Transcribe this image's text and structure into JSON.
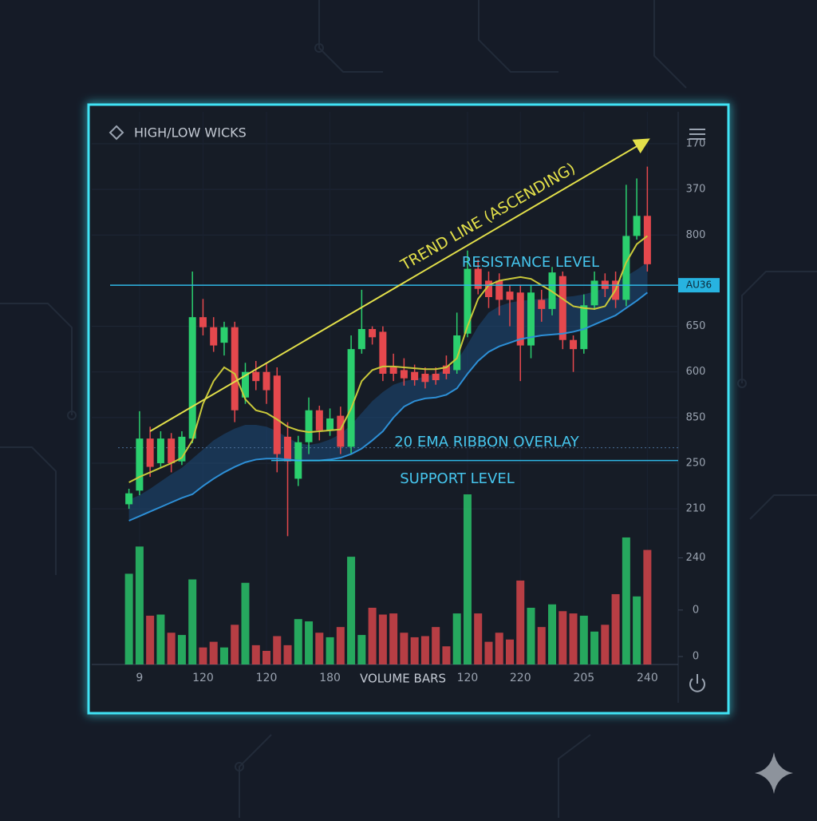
{
  "chart_data": {
    "type": "candlestick",
    "title": "HIGH/LOW WICKS",
    "up_color": "#2bcf6e",
    "down_color": "#e5484d",
    "open": [
      505,
      520,
      577,
      550,
      577,
      552,
      577,
      710,
      699,
      682,
      699,
      622,
      650,
      650,
      646,
      579,
      533,
      573,
      608,
      586,
      602,
      568,
      675,
      697,
      694,
      655,
      652,
      650,
      648,
      648,
      657,
      652,
      692,
      763,
      750,
      750,
      738,
      737,
      679,
      729,
      719,
      755,
      685,
      675,
      723,
      750,
      750,
      729,
      799,
      821
    ],
    "high": [
      522,
      607,
      590,
      585,
      583,
      585,
      760,
      730,
      710,
      705,
      705,
      660,
      662,
      660,
      655,
      595,
      580,
      622,
      613,
      610,
      612,
      690,
      740,
      700,
      700,
      670,
      665,
      658,
      655,
      655,
      668,
      715,
      783,
      773,
      760,
      758,
      745,
      745,
      745,
      740,
      765,
      760,
      690,
      735,
      760,
      758,
      760,
      855,
      862,
      875
    ],
    "low": [
      500,
      515,
      535,
      545,
      540,
      548,
      572,
      690,
      672,
      668,
      595,
      615,
      630,
      615,
      540,
      470,
      525,
      560,
      575,
      580,
      560,
      560,
      670,
      680,
      640,
      640,
      635,
      635,
      632,
      636,
      642,
      648,
      688,
      735,
      720,
      712,
      700,
      640,
      665,
      705,
      712,
      675,
      650,
      670,
      718,
      732,
      720,
      722,
      795,
      760
    ],
    "close": [
      517,
      577,
      546,
      577,
      550,
      579,
      710,
      699,
      679,
      699,
      608,
      650,
      640,
      630,
      560,
      552,
      573,
      608,
      586,
      599,
      568,
      675,
      697,
      688,
      648,
      648,
      643,
      641,
      639,
      641,
      648,
      690,
      763,
      741,
      732,
      729,
      729,
      679,
      737,
      719,
      759,
      685,
      675,
      723,
      750,
      741,
      729,
      799,
      821,
      768
    ],
    "volume": [
      80,
      104,
      43,
      44,
      28,
      26,
      75,
      15,
      20,
      15,
      35,
      72,
      17,
      12,
      25,
      17,
      40,
      38,
      28,
      24,
      33,
      95,
      26,
      50,
      44,
      45,
      28,
      24,
      25,
      33,
      16,
      45,
      150,
      45,
      20,
      28,
      22,
      74,
      50,
      33,
      53,
      47,
      45,
      43,
      29,
      35,
      62,
      112,
      60,
      101
    ],
    "xlim": [
      -0.5,
      49.5
    ],
    "xticks": [
      {
        "value": 1,
        "label": "9"
      },
      {
        "value": 7,
        "label": "120"
      },
      {
        "value": 13,
        "label": "120"
      },
      {
        "value": 19,
        "label": "180"
      },
      {
        "value": 32,
        "label": "120"
      },
      {
        "value": 37,
        "label": "220"
      },
      {
        "value": 43,
        "label": "205"
      },
      {
        "value": 49,
        "label": "240"
      }
    ],
    "x_label": "VOLUME BARS",
    "ylim": [
      480,
      935
    ],
    "yticks": [
      {
        "value": 900,
        "label": "170"
      },
      {
        "value": 850,
        "label": "370"
      },
      800,
      {
        "value": 700,
        "label": "650"
      },
      {
        "value": 650,
        "label": "600"
      },
      {
        "value": 600,
        "label": "850"
      },
      {
        "value": 550,
        "label": "250"
      },
      {
        "value": 500,
        "label": "210"
      }
    ],
    "volume_ylim": [
      0,
      100
    ],
    "volume_yticks": [
      {
        "value": 94,
        "label": "240"
      },
      {
        "value": 48,
        "label": "0"
      },
      {
        "value": 7,
        "label": "0"
      }
    ],
    "overlays": [
      {
        "color": "#c9c83a",
        "values": [
          529,
          535,
          540,
          545,
          550,
          556,
          575,
          615,
          640,
          655,
          648,
          620,
          608,
          605,
          598,
          590,
          586,
          584,
          585,
          586,
          587,
          610,
          640,
          652,
          656,
          656,
          655,
          654,
          653,
          653,
          655,
          665,
          700,
          730,
          745,
          750,
          752,
          754,
          752,
          745,
          738,
          730,
          722,
          720,
          719,
          722,
          740,
          770,
          790,
          799
        ]
      },
      {
        "color": "#2d8fd6",
        "values": [
          487,
          492,
          497,
          502,
          507,
          512,
          516,
          525,
          533,
          540,
          546,
          551,
          554,
          555,
          555,
          554,
          553,
          553,
          553,
          554,
          556,
          560,
          566,
          575,
          585,
          600,
          612,
          618,
          621,
          622,
          625,
          632,
          648,
          662,
          672,
          678,
          682,
          686,
          688,
          690,
          691,
          692,
          694,
          697,
          702,
          707,
          712,
          720,
          728,
          737
        ]
      }
    ],
    "ribbon": {
      "label": "20 EMA RIBBON OVERLAY",
      "color": "#1d4a78",
      "level": 567,
      "upper": [
        510,
        515,
        522,
        530,
        538,
        545,
        555,
        565,
        575,
        582,
        588,
        592,
        592,
        590,
        585,
        578,
        572,
        570,
        572,
        576,
        582,
        592,
        605,
        618,
        628,
        636,
        640,
        642,
        645,
        648,
        652,
        662,
        680,
        700,
        715,
        722,
        726,
        728,
        729,
        730,
        731,
        732,
        733,
        735,
        738,
        742,
        748,
        755,
        762,
        770
      ]
    },
    "resistance": {
      "label": "RESISTANCE LEVEL",
      "badge": "AU36",
      "value": 745,
      "color": "#2fb7e6"
    },
    "support": {
      "label": "SUPPORT LEVEL",
      "value": 553,
      "color": "#2fb7e6"
    },
    "trend_line": {
      "label": "TREND LINE (ASCENDING)",
      "color": "#e3e04a",
      "x": [
        2,
        49
      ],
      "y": [
        585,
        904
      ]
    }
  }
}
